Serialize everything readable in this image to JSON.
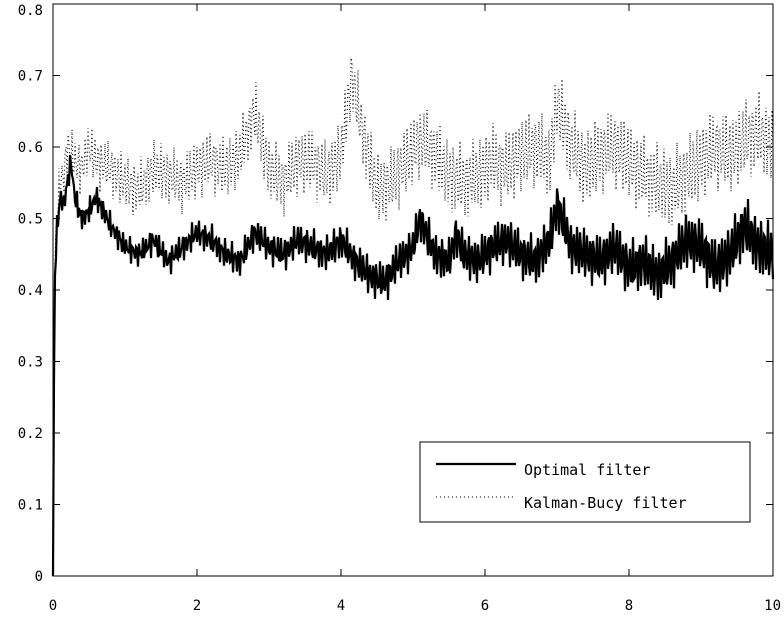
{
  "chart_data": {
    "type": "line",
    "title": "",
    "xlabel": "",
    "ylabel": "",
    "xlim": [
      0,
      10
    ],
    "ylim": [
      0,
      0.8
    ],
    "x_ticks": [
      "0",
      "2",
      "4",
      "6",
      "8",
      "10"
    ],
    "y_ticks": [
      "0",
      "0.1",
      "0.2",
      "0.3",
      "0.4",
      "0.5",
      "0.6",
      "0.7",
      "0.8"
    ],
    "grid": false,
    "legend_position": "bottom-right",
    "series": [
      {
        "name": "Optimal filter",
        "style": "solid",
        "color": "#000000",
        "x": [
          0.0,
          0.02,
          0.05,
          0.1,
          0.15,
          0.2,
          0.25,
          0.3,
          0.4,
          0.5,
          0.6,
          0.8,
          1.0,
          1.2,
          1.4,
          1.6,
          1.8,
          2.0,
          2.2,
          2.4,
          2.6,
          2.8,
          3.0,
          3.2,
          3.4,
          3.6,
          3.8,
          4.0,
          4.2,
          4.4,
          4.6,
          4.8,
          5.0,
          5.1,
          5.3,
          5.5,
          5.6,
          5.7,
          5.9,
          6.1,
          6.3,
          6.5,
          6.7,
          6.9,
          7.0,
          7.2,
          7.4,
          7.6,
          7.8,
          8.0,
          8.2,
          8.4,
          8.6,
          8.8,
          9.0,
          9.2,
          9.4,
          9.6,
          9.8,
          10.0
        ],
        "values": [
          0.0,
          0.4,
          0.48,
          0.53,
          0.52,
          0.55,
          0.58,
          0.53,
          0.5,
          0.51,
          0.53,
          0.49,
          0.46,
          0.45,
          0.47,
          0.44,
          0.46,
          0.48,
          0.47,
          0.45,
          0.44,
          0.48,
          0.46,
          0.45,
          0.47,
          0.46,
          0.45,
          0.47,
          0.44,
          0.42,
          0.41,
          0.44,
          0.46,
          0.5,
          0.45,
          0.44,
          0.48,
          0.45,
          0.44,
          0.46,
          0.47,
          0.45,
          0.44,
          0.47,
          0.52,
          0.46,
          0.45,
          0.44,
          0.46,
          0.43,
          0.44,
          0.42,
          0.44,
          0.47,
          0.46,
          0.43,
          0.45,
          0.49,
          0.46,
          0.45
        ]
      },
      {
        "name": "Kalman-Bucy filter",
        "style": "dotted",
        "color": "#000000",
        "x": [
          0.0,
          0.02,
          0.05,
          0.1,
          0.15,
          0.2,
          0.3,
          0.4,
          0.5,
          0.6,
          0.8,
          1.0,
          1.2,
          1.4,
          1.6,
          1.8,
          2.0,
          2.2,
          2.4,
          2.6,
          2.8,
          3.0,
          3.2,
          3.4,
          3.6,
          3.8,
          4.0,
          4.15,
          4.3,
          4.5,
          4.7,
          4.9,
          5.1,
          5.3,
          5.5,
          5.7,
          5.9,
          6.1,
          6.3,
          6.5,
          6.7,
          6.9,
          7.0,
          7.2,
          7.4,
          7.6,
          7.8,
          8.0,
          8.2,
          8.4,
          8.6,
          8.8,
          9.0,
          9.2,
          9.4,
          9.6,
          9.8,
          10.0
        ],
        "values": [
          0.0,
          0.42,
          0.5,
          0.55,
          0.56,
          0.6,
          0.58,
          0.57,
          0.6,
          0.58,
          0.57,
          0.55,
          0.54,
          0.57,
          0.56,
          0.55,
          0.57,
          0.58,
          0.57,
          0.59,
          0.65,
          0.57,
          0.55,
          0.58,
          0.58,
          0.56,
          0.59,
          0.7,
          0.62,
          0.54,
          0.55,
          0.58,
          0.61,
          0.59,
          0.56,
          0.55,
          0.56,
          0.58,
          0.57,
          0.59,
          0.6,
          0.58,
          0.66,
          0.6,
          0.57,
          0.59,
          0.6,
          0.58,
          0.56,
          0.55,
          0.54,
          0.56,
          0.58,
          0.6,
          0.59,
          0.61,
          0.62,
          0.6
        ]
      }
    ]
  }
}
